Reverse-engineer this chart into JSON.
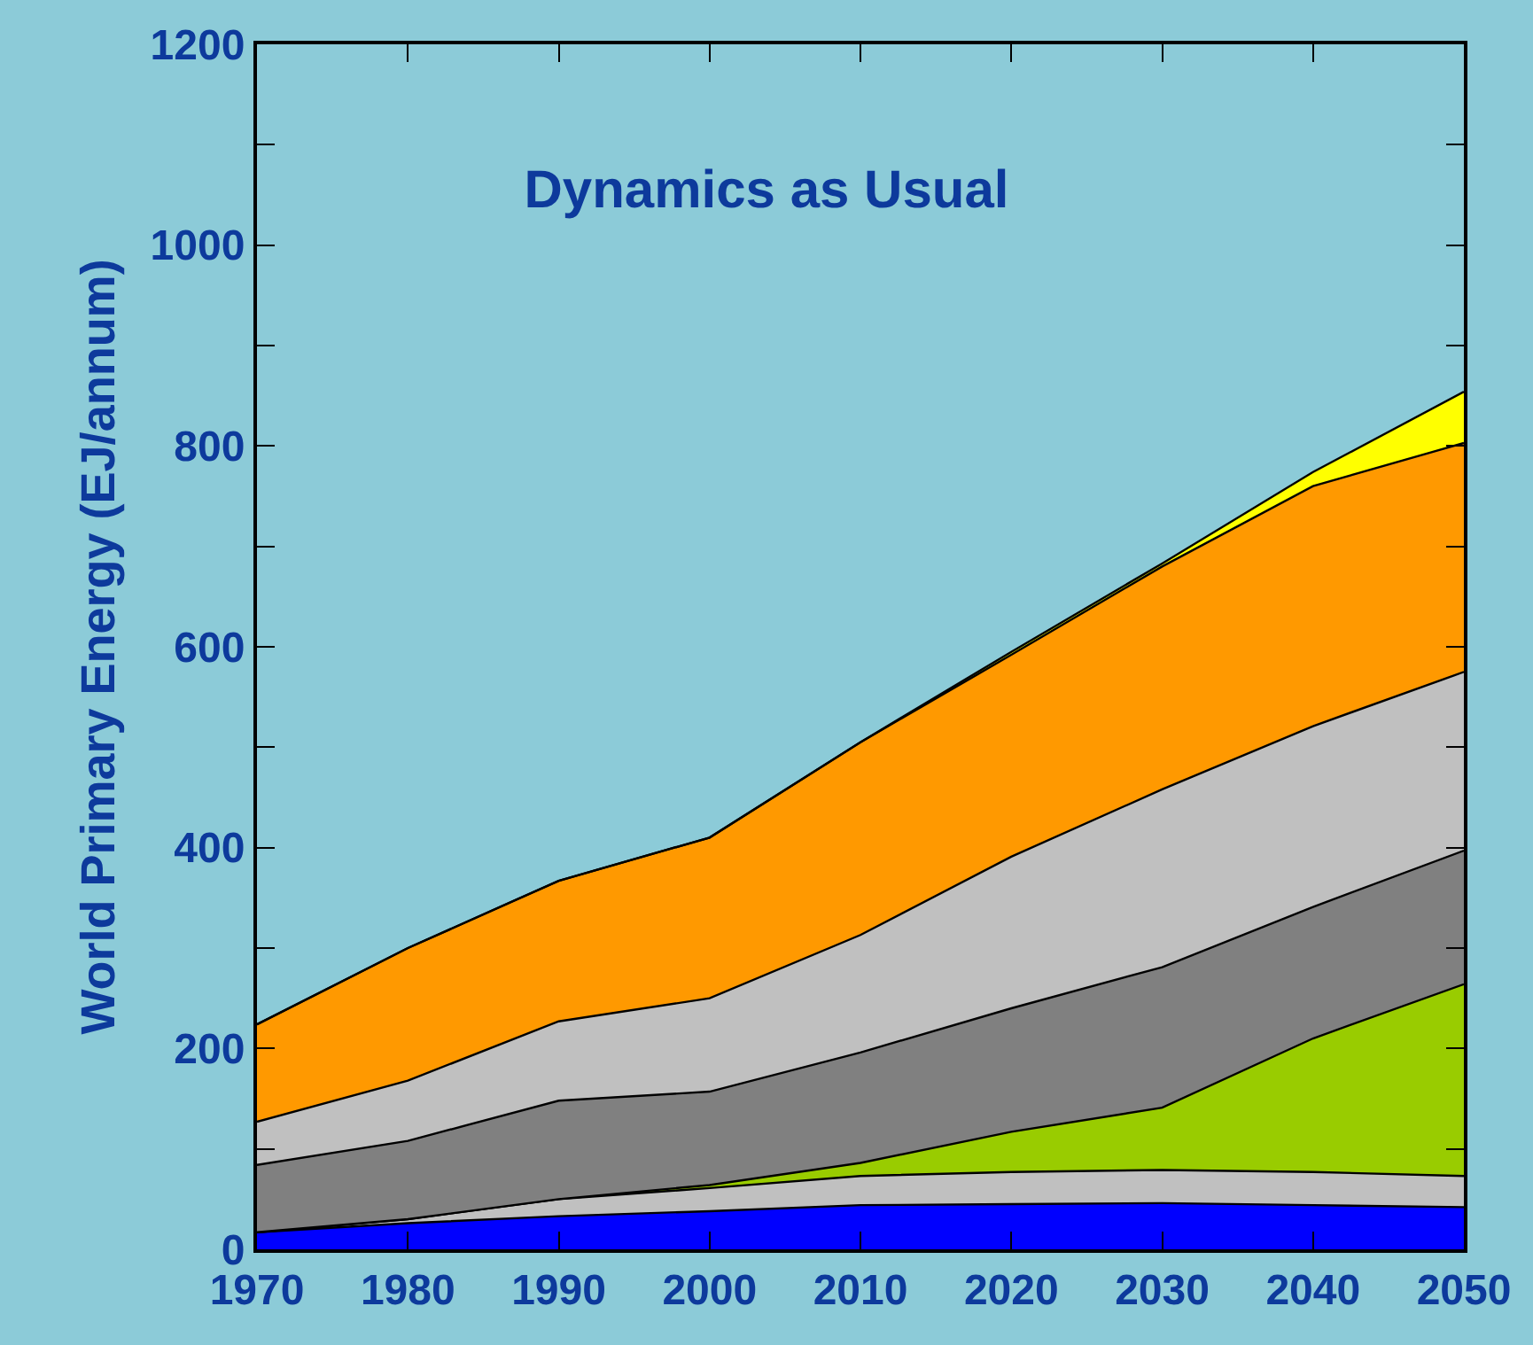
{
  "chart_data": {
    "type": "area",
    "stacked": true,
    "title": "Dynamics as Usual",
    "ylabel": "World Primary Energy (EJ/annum)",
    "x": [
      1970,
      1980,
      1990,
      2000,
      2010,
      2020,
      2030,
      2040,
      2050
    ],
    "xlim": [
      1970,
      2050
    ],
    "xticks": [
      1970,
      1980,
      1990,
      2000,
      2010,
      2020,
      2030,
      2040,
      2050
    ],
    "ylim": [
      0,
      1200
    ],
    "yticks": [
      0,
      {
        "value": 100,
        "label": null
      },
      200,
      {
        "value": 300,
        "label": null
      },
      400,
      {
        "value": 500,
        "label": null
      },
      600,
      {
        "value": 700,
        "label": null
      },
      800,
      {
        "value": 900,
        "label": null
      },
      1000,
      {
        "value": 1100,
        "label": null
      },
      1200
    ],
    "grid": false,
    "series": [
      {
        "color": "#0000ff",
        "values": [
          17,
          26,
          33,
          38,
          44,
          45,
          46,
          44,
          42
        ]
      },
      {
        "color": "#c0c0c0",
        "values": [
          0,
          4,
          17,
          23,
          29,
          32,
          33,
          33,
          31
        ]
      },
      {
        "color": "#99cc00",
        "values": [
          0,
          0,
          0,
          3,
          13,
          40,
          62,
          133,
          191
        ]
      },
      {
        "color": "#808080",
        "values": [
          67,
          78,
          98,
          93,
          110,
          123,
          140,
          131,
          133
        ]
      },
      {
        "color": "#c0c0c0",
        "values": [
          43,
          60,
          79,
          93,
          117,
          151,
          177,
          180,
          178
        ]
      },
      {
        "color": "#ff9900",
        "values": [
          97,
          132,
          140,
          160,
          192,
          201,
          222,
          239,
          228
        ]
      },
      {
        "color": "#ffff00",
        "values": [
          0,
          0,
          0,
          0,
          0,
          3,
          3,
          14,
          51
        ]
      }
    ]
  }
}
